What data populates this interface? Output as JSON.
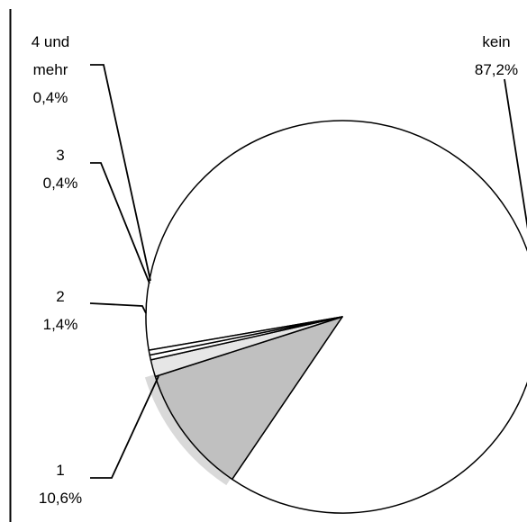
{
  "chart_data": {
    "type": "pie",
    "categories": [
      "kein",
      "1",
      "2",
      "3",
      "4 und mehr"
    ],
    "values": [
      87.2,
      10.6,
      1.4,
      0.4,
      0.4
    ],
    "value_labels": [
      "87,2%",
      "10,6%",
      "1,4%",
      "0,4%",
      "0,4%"
    ],
    "legend": "none",
    "labels": [
      {
        "lines": [
          "kein",
          "87,2%"
        ]
      },
      {
        "lines": [
          "1",
          "10,6%"
        ]
      },
      {
        "lines": [
          "2",
          "1,4%"
        ]
      },
      {
        "lines": [
          "3",
          "0,4%"
        ]
      },
      {
        "lines": [
          "4 und",
          "mehr",
          "0,4%"
        ]
      }
    ],
    "colors": [
      "#ffffff",
      "#c0c0c0",
      "#e6e6e6",
      "#ffffff",
      "#ffffff"
    ]
  }
}
